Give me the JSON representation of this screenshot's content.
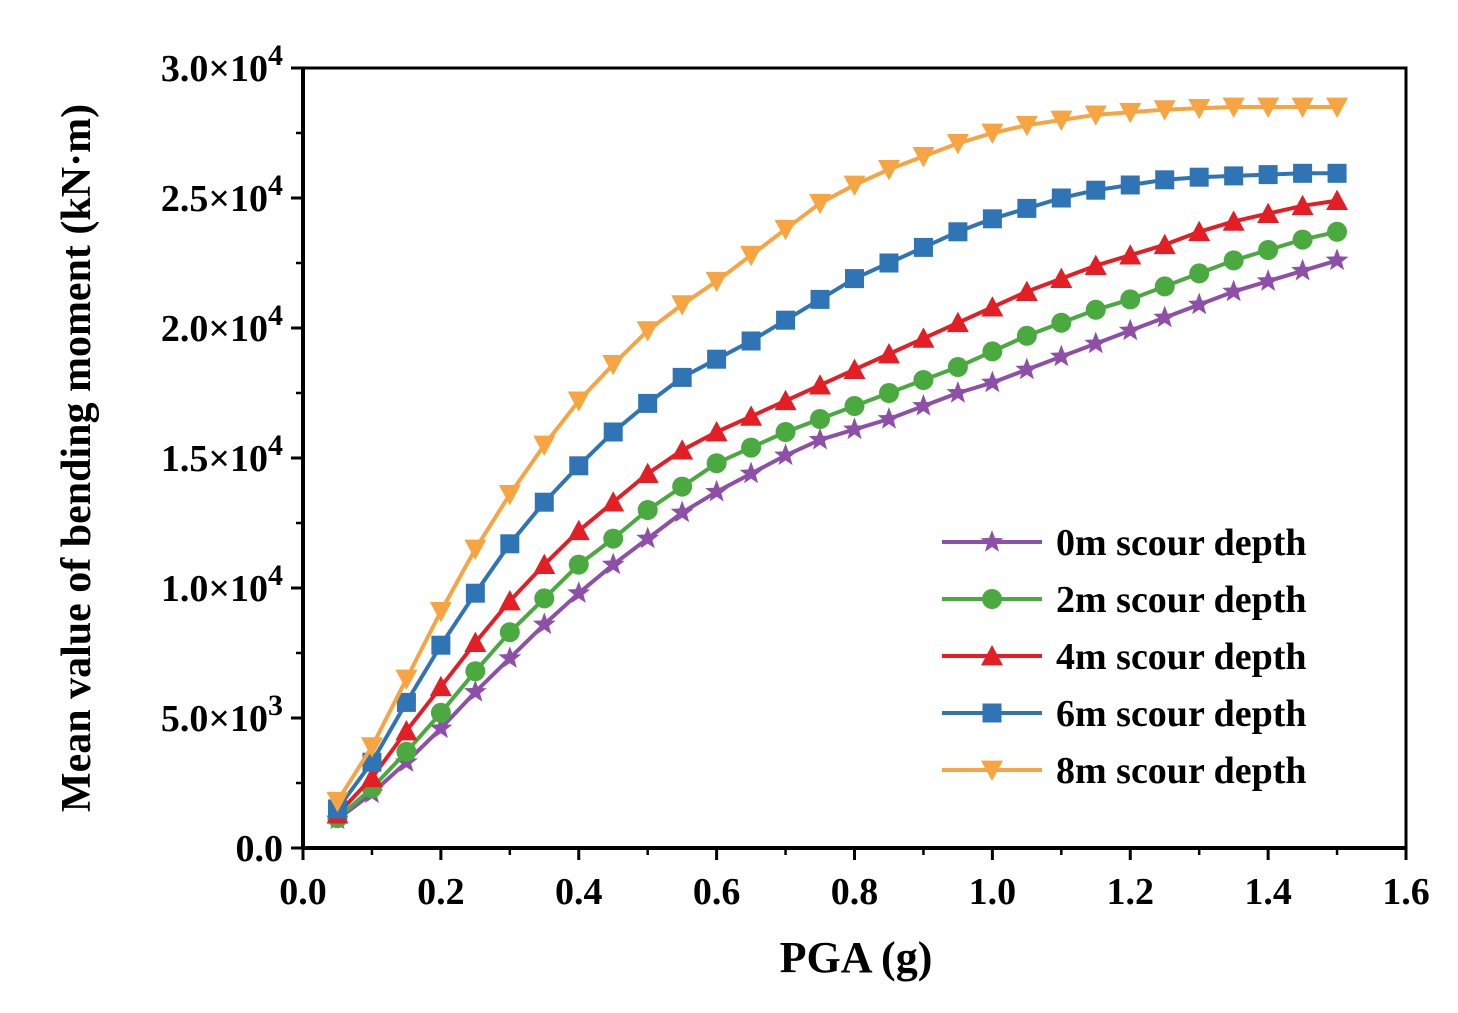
{
  "chart_data": {
    "type": "line",
    "title": "",
    "xlabel": "PGA (g)",
    "ylabel": "Mean value of bending moment (kN·m)",
    "xlim": [
      0,
      1.6
    ],
    "ylim": [
      0,
      30000
    ],
    "grid": false,
    "legend_position": "bottom-right",
    "x_ticks": [
      {
        "value": 0.0,
        "label": "0.0"
      },
      {
        "value": 0.2,
        "label": "0.2"
      },
      {
        "value": 0.4,
        "label": "0.4"
      },
      {
        "value": 0.6,
        "label": "0.6"
      },
      {
        "value": 0.8,
        "label": "0.8"
      },
      {
        "value": 1.0,
        "label": "1.0"
      },
      {
        "value": 1.2,
        "label": "1.2"
      },
      {
        "value": 1.4,
        "label": "1.4"
      },
      {
        "value": 1.6,
        "label": "1.6"
      }
    ],
    "y_ticks": [
      {
        "value": 0,
        "mantissa": "0.0",
        "exponent": ""
      },
      {
        "value": 5000,
        "mantissa": "5.0×10",
        "exponent": "3"
      },
      {
        "value": 10000,
        "mantissa": "1.0×10",
        "exponent": "4"
      },
      {
        "value": 15000,
        "mantissa": "1.5×10",
        "exponent": "4"
      },
      {
        "value": 20000,
        "mantissa": "2.0×10",
        "exponent": "4"
      },
      {
        "value": 25000,
        "mantissa": "2.5×10",
        "exponent": "4"
      },
      {
        "value": 30000,
        "mantissa": "3.0×10",
        "exponent": "4"
      }
    ],
    "x": [
      0.05,
      0.1,
      0.15,
      0.2,
      0.25,
      0.3,
      0.35,
      0.4,
      0.45,
      0.5,
      0.55,
      0.6,
      0.65,
      0.7,
      0.75,
      0.8,
      0.85,
      0.9,
      0.95,
      1.0,
      1.05,
      1.1,
      1.15,
      1.2,
      1.25,
      1.3,
      1.35,
      1.4,
      1.45,
      1.5
    ],
    "series": [
      {
        "name": "0m scour depth",
        "color": "#8e4fa8",
        "marker": "star",
        "values": [
          1100,
          2100,
          3300,
          4600,
          6000,
          7300,
          8600,
          9800,
          10900,
          11900,
          12900,
          13700,
          14400,
          15100,
          15700,
          16100,
          16500,
          17000,
          17500,
          17900,
          18400,
          18900,
          19400,
          19900,
          20400,
          20900,
          21400,
          21800,
          22200,
          22600
        ]
      },
      {
        "name": "2m scour depth",
        "color": "#4aa93f",
        "marker": "circle",
        "values": [
          1150,
          2300,
          3700,
          5200,
          6800,
          8300,
          9600,
          10900,
          11900,
          13000,
          13900,
          14800,
          15400,
          16000,
          16500,
          17000,
          17500,
          18000,
          18500,
          19100,
          19700,
          20200,
          20700,
          21100,
          21600,
          22100,
          22600,
          23000,
          23400,
          23700
        ]
      },
      {
        "name": "4m scour depth",
        "color": "#e31e24",
        "marker": "triangle-up",
        "values": [
          1300,
          2700,
          4500,
          6200,
          7900,
          9500,
          10900,
          12200,
          13300,
          14400,
          15300,
          16000,
          16600,
          17200,
          17800,
          18400,
          19000,
          19600,
          20200,
          20800,
          21400,
          21900,
          22400,
          22800,
          23200,
          23700,
          24100,
          24400,
          24700,
          24900
        ]
      },
      {
        "name": "6m scour depth",
        "color": "#2f75b5",
        "marker": "square",
        "values": [
          1500,
          3300,
          5600,
          7800,
          9800,
          11700,
          13300,
          14700,
          16000,
          17100,
          18100,
          18800,
          19500,
          20300,
          21100,
          21900,
          22500,
          23100,
          23700,
          24200,
          24600,
          25000,
          25300,
          25500,
          25700,
          25800,
          25850,
          25900,
          25950,
          25950
        ]
      },
      {
        "name": "8m scour depth",
        "color": "#f7a443",
        "marker": "triangle-down",
        "values": [
          1800,
          3900,
          6500,
          9100,
          11500,
          13600,
          15500,
          17200,
          18600,
          19900,
          20900,
          21800,
          22800,
          23800,
          24800,
          25500,
          26100,
          26600,
          27100,
          27500,
          27800,
          28000,
          28200,
          28300,
          28400,
          28450,
          28500,
          28500,
          28500,
          28500
        ]
      }
    ]
  }
}
